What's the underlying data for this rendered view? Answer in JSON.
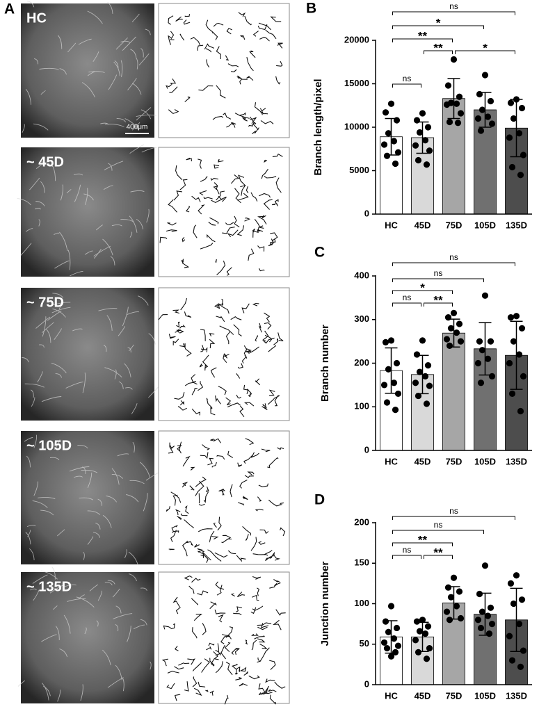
{
  "panel_a": {
    "label": "A",
    "scale_bar": "400μm",
    "images": [
      {
        "label": "HC"
      },
      {
        "label": "~ 45D"
      },
      {
        "label": "~ 75D"
      },
      {
        "label": "~ 105D"
      },
      {
        "label": "~ 135D"
      }
    ]
  },
  "chart_data": [
    {
      "type": "bar",
      "panel_label": "B",
      "y_label": "Branch length/pixel",
      "categories": [
        "HC",
        "45D",
        "75D",
        "105D",
        "135D"
      ],
      "colors": [
        "#ffffff",
        "#d9d9d9",
        "#a6a6a6",
        "#707070",
        "#4d4d4d"
      ],
      "values": [
        8900,
        8800,
        13300,
        12000,
        9900
      ],
      "errors": [
        2100,
        1800,
        2300,
        2000,
        3300
      ],
      "points": [
        [
          12700,
          11700,
          10800,
          9300,
          8400,
          8000,
          7100,
          6700,
          5800
        ],
        [
          11600,
          10800,
          10000,
          9400,
          8500,
          7900,
          7300,
          6200,
          5700
        ],
        [
          17800,
          14800,
          13500,
          12800,
          12700,
          12600,
          11600,
          10600,
          10500
        ],
        [
          16000,
          13800,
          13000,
          12000,
          11200,
          11000,
          10400,
          9600
        ],
        [
          13200,
          12800,
          12200,
          11000,
          9300,
          8800,
          6800,
          5400,
          4500
        ]
      ],
      "ylim": [
        0,
        20000
      ],
      "yticks": [
        0,
        5000,
        10000,
        15000,
        20000
      ],
      "significance": [
        {
          "groups": [
            "HC",
            "135D"
          ],
          "label": "ns"
        },
        {
          "groups": [
            "HC",
            "105D"
          ],
          "label": "*"
        },
        {
          "groups": [
            "HC",
            "75D"
          ],
          "label": "**"
        },
        {
          "groups": [
            "45D",
            "75D"
          ],
          "label": "**"
        },
        {
          "groups": [
            "75D",
            "135D"
          ],
          "label": "*"
        },
        {
          "groups": [
            "HC",
            "45D"
          ],
          "label": "ns"
        }
      ]
    },
    {
      "type": "bar",
      "panel_label": "C",
      "y_label": "Branch number",
      "categories": [
        "HC",
        "45D",
        "75D",
        "105D",
        "135D"
      ],
      "colors": [
        "#ffffff",
        "#d9d9d9",
        "#a6a6a6",
        "#707070",
        "#4d4d4d"
      ],
      "values": [
        183,
        174,
        269,
        233,
        218
      ],
      "errors": [
        52,
        44,
        32,
        60,
        78
      ],
      "points": [
        [
          252,
          248,
          200,
          186,
          155,
          150,
          130,
          110,
          93
        ],
        [
          252,
          220,
          195,
          180,
          170,
          155,
          148,
          125,
          107
        ],
        [
          315,
          305,
          290,
          280,
          270,
          255,
          250,
          240
        ],
        [
          355,
          250,
          250,
          230,
          210,
          200,
          170,
          155
        ],
        [
          308,
          305,
          280,
          250,
          220,
          200,
          170,
          130,
          90
        ]
      ],
      "ylim": [
        0,
        400
      ],
      "yticks": [
        0,
        100,
        200,
        300,
        400
      ],
      "significance": [
        {
          "groups": [
            "HC",
            "135D"
          ],
          "label": "ns"
        },
        {
          "groups": [
            "HC",
            "105D"
          ],
          "label": "ns"
        },
        {
          "groups": [
            "HC",
            "75D"
          ],
          "label": "*"
        },
        {
          "groups": [
            "HC",
            "45D"
          ],
          "label": "ns"
        },
        {
          "groups": [
            "45D",
            "75D"
          ],
          "label": "**"
        }
      ]
    },
    {
      "type": "bar",
      "panel_label": "D",
      "y_label": "Junction number",
      "categories": [
        "HC",
        "45D",
        "75D",
        "105D",
        "135D"
      ],
      "colors": [
        "#ffffff",
        "#d9d9d9",
        "#a6a6a6",
        "#707070",
        "#4d4d4d"
      ],
      "values": [
        59,
        59,
        101,
        87,
        80
      ],
      "errors": [
        20,
        18,
        20,
        26,
        39
      ],
      "points": [
        [
          97,
          78,
          70,
          65,
          57,
          52,
          48,
          45,
          40,
          35
        ],
        [
          80,
          78,
          72,
          66,
          63,
          55,
          45,
          40,
          32
        ],
        [
          132,
          120,
          115,
          108,
          97,
          90,
          82,
          80
        ],
        [
          147,
          112,
          95,
          90,
          85,
          80,
          75,
          70,
          63
        ],
        [
          135,
          125,
          105,
          100,
          75,
          60,
          42,
          30,
          22
        ]
      ],
      "ylim": [
        0,
        200
      ],
      "yticks": [
        0,
        50,
        100,
        150,
        200
      ],
      "significance": [
        {
          "groups": [
            "HC",
            "135D"
          ],
          "label": "ns"
        },
        {
          "groups": [
            "HC",
            "105D"
          ],
          "label": "ns"
        },
        {
          "groups": [
            "HC",
            "75D"
          ],
          "label": "**"
        },
        {
          "groups": [
            "HC",
            "45D"
          ],
          "label": "ns"
        },
        {
          "groups": [
            "45D",
            "75D"
          ],
          "label": "**"
        }
      ]
    }
  ]
}
